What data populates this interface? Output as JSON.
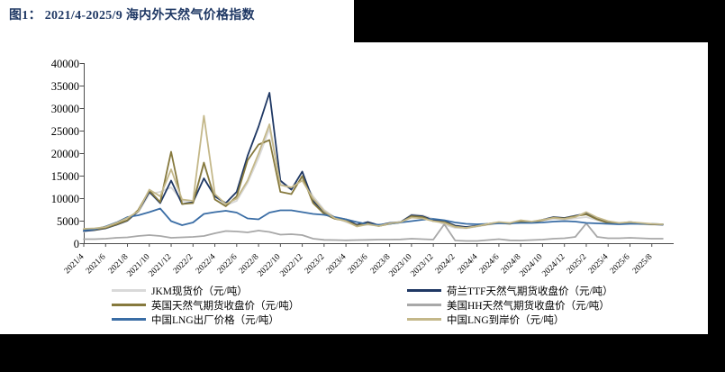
{
  "title": "图1：  2021/4-2025/9 海内外天然气价格指数",
  "title_color": "#1f3864",
  "chart_data": {
    "type": "line",
    "title": "图1：  2021/4-2025/9 海内外天然气价格指数",
    "xlabel": "",
    "ylabel": "",
    "ylim": [
      0,
      40000
    ],
    "yticks": [
      0,
      5000,
      10000,
      15000,
      20000,
      25000,
      30000,
      35000,
      40000
    ],
    "x_tick_every": 2,
    "grid": false,
    "legend_position": "bottom",
    "x": [
      "2021/4",
      "2021/5",
      "2021/6",
      "2021/7",
      "2021/8",
      "2021/9",
      "2021/10",
      "2021/11",
      "2021/12",
      "2022/1",
      "2022/2",
      "2022/3",
      "2022/4",
      "2022/5",
      "2022/6",
      "2022/7",
      "2022/8",
      "2022/9",
      "2022/10",
      "2022/11",
      "2022/12",
      "2023/1",
      "2023/2",
      "2023/3",
      "2023/4",
      "2023/5",
      "2023/6",
      "2023/7",
      "2023/8",
      "2023/9",
      "2023/10",
      "2023/11",
      "2023/12",
      "2024/1",
      "2024/2",
      "2024/3",
      "2024/4",
      "2024/5",
      "2024/6",
      "2024/7",
      "2024/8",
      "2024/9",
      "2024/10",
      "2024/11",
      "2024/12",
      "2025/1",
      "2025/2",
      "2025/3",
      "2025/4",
      "2025/5",
      "2025/6",
      "2025/7",
      "2025/8",
      "2025/9"
    ],
    "series": [
      {
        "name": "JKM现货价（元/吨）",
        "color": "#d9d9d9",
        "values": [
          2600,
          3200,
          3800,
          4700,
          5800,
          7000,
          11000,
          11500,
          12500,
          9500,
          9000,
          17500,
          10500,
          8500,
          9500,
          13500,
          19000,
          25500,
          13500,
          12000,
          14500,
          10500,
          7500,
          5800,
          4800,
          4000,
          4200,
          4000,
          4400,
          4700,
          6500,
          6300,
          5500,
          4200,
          3500,
          3400,
          3800,
          4200,
          4500,
          4400,
          4800,
          4700,
          5100,
          5500,
          5300,
          5600,
          5900,
          5200,
          4500,
          4300,
          4500,
          4300,
          4200,
          4200
        ]
      },
      {
        "name": "荷兰TTF天然气期货收盘价（元/吨）",
        "color": "#1f3864",
        "values": [
          2800,
          3000,
          3400,
          4200,
          5100,
          7200,
          11500,
          9000,
          14000,
          8800,
          9200,
          14500,
          10500,
          9000,
          11500,
          19500,
          26000,
          33500,
          14000,
          12000,
          16000,
          9500,
          7000,
          5800,
          5400,
          4200,
          4800,
          4100,
          4600,
          4800,
          6300,
          6100,
          5200,
          5000,
          4000,
          3700,
          4000,
          4400,
          4700,
          4500,
          5000,
          4800,
          5300,
          5900,
          5700,
          6200,
          6700,
          5600,
          4700,
          4500,
          4800,
          4500,
          4300,
          4200
        ]
      },
      {
        "name": "英国天然气期货收盘价（元/吨）",
        "color": "#86793d",
        "values": [
          3200,
          3100,
          3500,
          4300,
          5200,
          7500,
          11800,
          9200,
          20400,
          8800,
          9000,
          18000,
          9800,
          8300,
          10500,
          18500,
          22000,
          23000,
          11500,
          11000,
          15000,
          9000,
          6600,
          5500,
          5100,
          4000,
          4500,
          3900,
          4400,
          4700,
          6100,
          5900,
          5000,
          4800,
          3800,
          3500,
          3900,
          4300,
          4600,
          4400,
          4900,
          4700,
          5200,
          5800,
          5600,
          6100,
          6500,
          5400,
          4600,
          4400,
          4700,
          4400,
          4300,
          4300
        ]
      },
      {
        "name": "美国HH天然气期货收盘价（元/吨）",
        "color": "#a8a8a8",
        "values": [
          1000,
          1000,
          1100,
          1300,
          1400,
          1700,
          1900,
          1700,
          1300,
          1400,
          1500,
          1700,
          2300,
          2800,
          2700,
          2500,
          2900,
          2600,
          2000,
          2100,
          1900,
          1100,
          850,
          800,
          750,
          800,
          850,
          900,
          900,
          950,
          1100,
          1000,
          900,
          4300,
          700,
          600,
          600,
          800,
          1000,
          750,
          700,
          800,
          900,
          1100,
          1200,
          1500,
          4500,
          1500,
          1200,
          1200,
          1300,
          1200,
          1100,
          1100
        ]
      },
      {
        "name": "中国LNG出厂价格（元/吨）",
        "color": "#3a6da5",
        "values": [
          2900,
          3200,
          3800,
          4700,
          5900,
          6300,
          7000,
          7800,
          5000,
          4100,
          4700,
          6600,
          7000,
          7300,
          6900,
          5600,
          5400,
          6900,
          7400,
          7400,
          7000,
          6600,
          6400,
          5900,
          5400,
          4800,
          4300,
          4200,
          4400,
          4700,
          5000,
          5300,
          5500,
          5200,
          4700,
          4400,
          4300,
          4400,
          4500,
          4500,
          4600,
          4600,
          4700,
          4900,
          5000,
          4900,
          4600,
          4500,
          4400,
          4300,
          4400,
          4400,
          4400,
          4300
        ]
      },
      {
        "name": "中国LNG到岸价（元/吨）",
        "color": "#c4b88a",
        "values": [
          3300,
          3400,
          3700,
          4600,
          5700,
          7200,
          12000,
          10500,
          16500,
          9800,
          9500,
          28400,
          11000,
          8800,
          10000,
          14000,
          20000,
          26500,
          13000,
          12500,
          14000,
          10000,
          7200,
          5600,
          5000,
          3800,
          4300,
          3900,
          4500,
          4800,
          5800,
          5600,
          5000,
          4600,
          3700,
          3500,
          3900,
          4400,
          4800,
          4600,
          5200,
          4900,
          5300,
          5700,
          5500,
          5900,
          7000,
          5800,
          5000,
          4600,
          4800,
          4600,
          4400,
          4300
        ]
      }
    ]
  }
}
